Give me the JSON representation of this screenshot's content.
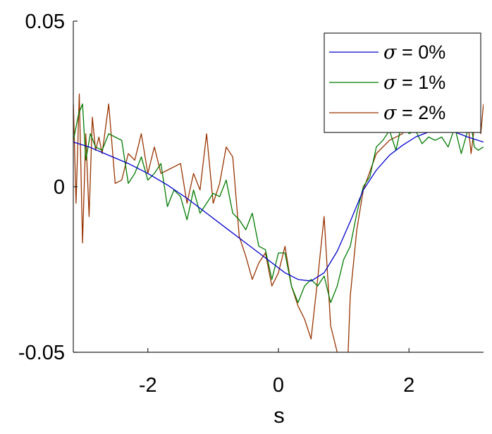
{
  "chart_data": {
    "type": "line",
    "title": "",
    "xlabel": "s",
    "ylabel": "",
    "xlim": [
      -3.14159,
      3.14159
    ],
    "ylim": [
      -0.05,
      0.05
    ],
    "xticks": [
      -2,
      0,
      2
    ],
    "xtick_labels": [
      "-2",
      "0",
      "2"
    ],
    "yticks": [
      -0.05,
      0,
      0.05
    ],
    "ytick_labels": [
      "-0.05",
      "0",
      "0.05"
    ],
    "grid": false,
    "legend": "top-right",
    "series": [
      {
        "name": "σ = 0%",
        "legend_symbol": "σ",
        "legend_rest": " = 0%",
        "color": "#0000cc",
        "x": [
          -3.14,
          -2.9,
          -2.6,
          -2.3,
          -2.0,
          -1.7,
          -1.4,
          -1.1,
          -0.8,
          -0.5,
          -0.2,
          0.1,
          0.3,
          0.5,
          0.7,
          0.9,
          1.1,
          1.3,
          1.5,
          1.7,
          1.9,
          2.1,
          2.3,
          2.5,
          2.7,
          2.9,
          3.14
        ],
        "y": [
          0.0135,
          0.012,
          0.0095,
          0.007,
          0.004,
          0.0005,
          -0.0035,
          -0.008,
          -0.0125,
          -0.017,
          -0.0215,
          -0.026,
          -0.028,
          -0.0285,
          -0.026,
          -0.0195,
          -0.0105,
          -0.001,
          0.005,
          0.0095,
          0.0125,
          0.015,
          0.0165,
          0.017,
          0.0165,
          0.015,
          0.0135
        ]
      },
      {
        "name": "σ = 1%",
        "legend_symbol": "σ",
        "legend_rest": " = 1%",
        "color": "#007a00",
        "x": [
          -3.14,
          -3.06,
          -3.0,
          -2.95,
          -2.88,
          -2.8,
          -2.7,
          -2.6,
          -2.5,
          -2.4,
          -2.3,
          -2.2,
          -2.1,
          -2.0,
          -1.9,
          -1.8,
          -1.7,
          -1.6,
          -1.5,
          -1.4,
          -1.3,
          -1.2,
          -1.1,
          -1.0,
          -0.9,
          -0.8,
          -0.7,
          -0.6,
          -0.5,
          -0.4,
          -0.3,
          -0.2,
          -0.1,
          0.0,
          0.1,
          0.2,
          0.3,
          0.4,
          0.5,
          0.6,
          0.7,
          0.8,
          0.9,
          1.0,
          1.1,
          1.2,
          1.3,
          1.4,
          1.5,
          1.6,
          1.7,
          1.8,
          1.9,
          2.0,
          2.1,
          2.2,
          2.3,
          2.4,
          2.5,
          2.6,
          2.7,
          2.8,
          2.9,
          2.95,
          3.0,
          3.06,
          3.14
        ],
        "y": [
          0.014,
          0.022,
          0.025,
          0.008,
          0.016,
          0.012,
          0.011,
          0.016,
          0.015,
          0.014,
          0.001,
          0.004,
          0.009,
          0.002,
          0.004,
          0.007,
          -0.006,
          -0.001,
          -0.003,
          -0.01,
          -0.001,
          -0.008,
          -0.005,
          -0.002,
          -0.003,
          0.002,
          -0.008,
          -0.01,
          -0.013,
          -0.008,
          -0.018,
          -0.019,
          -0.028,
          -0.02,
          -0.02,
          -0.03,
          -0.035,
          -0.03,
          -0.028,
          -0.03,
          -0.027,
          -0.035,
          -0.03,
          -0.022,
          -0.018,
          -0.008,
          0.0,
          0.003,
          0.012,
          0.014,
          0.017,
          0.011,
          0.02,
          0.016,
          0.017,
          0.013,
          0.015,
          0.014,
          0.015,
          0.012,
          0.018,
          0.01,
          0.017,
          0.019,
          0.012,
          0.011,
          0.012
        ]
      },
      {
        "name": "σ = 2%",
        "legend_symbol": "σ",
        "legend_rest": " = 2%",
        "color": "#993300",
        "x": [
          -3.14,
          -3.1,
          -3.05,
          -3.0,
          -2.95,
          -2.9,
          -2.85,
          -2.8,
          -2.75,
          -2.7,
          -2.6,
          -2.5,
          -2.4,
          -2.3,
          -2.2,
          -2.1,
          -2.0,
          -1.9,
          -1.8,
          -1.7,
          -1.6,
          -1.5,
          -1.4,
          -1.3,
          -1.2,
          -1.1,
          -1.0,
          -0.9,
          -0.8,
          -0.7,
          -0.6,
          -0.5,
          -0.4,
          -0.3,
          -0.2,
          -0.1,
          0.0,
          0.1,
          0.2,
          0.3,
          0.4,
          0.5,
          0.6,
          0.7,
          0.8,
          0.9,
          1.0,
          1.05,
          1.1,
          1.2,
          1.3,
          1.5,
          1.7,
          1.9,
          2.1,
          2.3,
          2.5,
          2.7,
          2.9,
          2.95,
          3.0,
          3.05,
          3.1,
          3.14
        ],
        "y": [
          0.025,
          -0.005,
          0.028,
          -0.017,
          0.016,
          -0.009,
          0.021,
          0.011,
          0.015,
          0.01,
          0.025,
          0.001,
          0.002,
          0.01,
          0.008,
          0.016,
          0.004,
          0.012,
          0.004,
          0.005,
          0.006,
          0.007,
          -0.005,
          0.004,
          -0.001,
          0.016,
          -0.005,
          0.001,
          0.012,
          0.009,
          -0.015,
          -0.021,
          -0.028,
          -0.023,
          -0.02,
          -0.03,
          -0.026,
          -0.018,
          -0.03,
          -0.036,
          -0.04,
          -0.046,
          -0.028,
          -0.009,
          -0.042,
          -0.05,
          -0.055,
          -0.059,
          -0.033,
          -0.013,
          -0.001,
          0.01,
          0.014,
          0.016,
          0.022,
          0.024,
          0.021,
          0.018,
          0.02,
          0.01,
          0.018,
          0.021,
          0.016,
          0.025
        ]
      }
    ]
  }
}
